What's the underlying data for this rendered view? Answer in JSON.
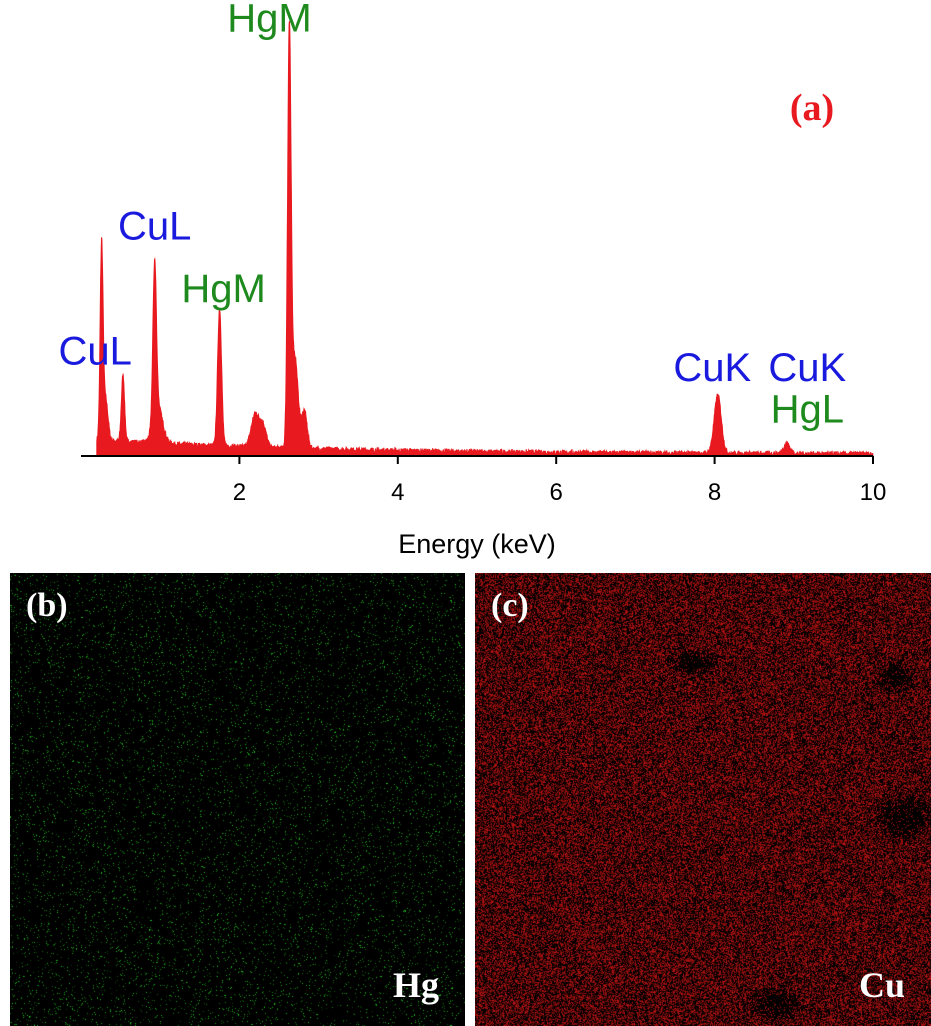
{
  "chart_data": {
    "type": "area",
    "panel_label": "(a)",
    "xlabel": "Energy (keV)",
    "ylabel": "",
    "xlim": [
      0,
      10
    ],
    "x_ticks": [
      2,
      4,
      6,
      8,
      10
    ],
    "y_axis_visible": false,
    "grid": false,
    "series": [
      {
        "color": "#e8191f",
        "baseline": 0.035,
        "peaks": [
          {
            "x": 0.26,
            "y": 0.46,
            "w": 0.018
          },
          {
            "x": 0.31,
            "y": 0.1,
            "w": 0.03
          },
          {
            "x": 0.53,
            "y": 0.16,
            "w": 0.02
          },
          {
            "x": 0.93,
            "y": 0.37,
            "w": 0.022
          },
          {
            "x": 0.97,
            "y": 0.09,
            "w": 0.06
          },
          {
            "x": 1.75,
            "y": 0.33,
            "w": 0.025
          },
          {
            "x": 2.2,
            "y": 0.08,
            "w": 0.05
          },
          {
            "x": 2.3,
            "y": 0.05,
            "w": 0.04
          },
          {
            "x": 2.63,
            "y": 0.98,
            "w": 0.022
          },
          {
            "x": 2.7,
            "y": 0.22,
            "w": 0.04
          },
          {
            "x": 2.82,
            "y": 0.09,
            "w": 0.035
          },
          {
            "x": 8.04,
            "y": 0.14,
            "w": 0.045
          },
          {
            "x": 8.91,
            "y": 0.025,
            "w": 0.04
          }
        ]
      }
    ],
    "annotations": [
      {
        "text": "CuL",
        "x": 0.93,
        "y": 0.52,
        "color": "#1a1adf"
      },
      {
        "text": "CuL",
        "x": 0.18,
        "y": 0.22,
        "color": "#1a1adf"
      },
      {
        "text": "HgM",
        "x": 2.38,
        "y": 1.02,
        "color": "#1e8a1e"
      },
      {
        "text": "HgM",
        "x": 1.8,
        "y": 0.37,
        "color": "#1e8a1e"
      },
      {
        "text": "CuK",
        "x": 7.97,
        "y": 0.18,
        "color": "#1a1adf"
      },
      {
        "text": "CuK",
        "x": 9.17,
        "y": 0.18,
        "color": "#1a1adf"
      },
      {
        "text": "HgL",
        "x": 9.17,
        "y": 0.08,
        "color": "#1e8a1e"
      }
    ]
  },
  "maps": [
    {
      "panel_label": "(b)",
      "element": "Hg",
      "dot_color": "#22c322"
    },
    {
      "panel_label": "(c)",
      "element": "Cu",
      "dot_color": "#c81414"
    }
  ]
}
